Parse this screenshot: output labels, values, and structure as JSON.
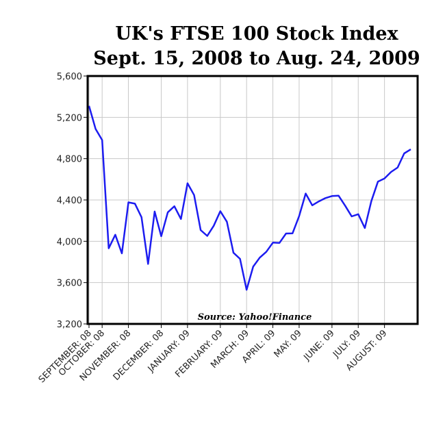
{
  "chart_data": {
    "type": "line",
    "title": "UK's FTSE 100 Stock Index",
    "subtitle": "Sept. 15, 2008 to Aug. 24, 2009",
    "annotation": "Source: Yahoo!Finance",
    "categories": [
      "SEPTEMBER: 08",
      null,
      "OCTOBER: 08",
      null,
      null,
      null,
      "NOVEMBER: 08",
      null,
      null,
      null,
      null,
      "DECEMBER: 08",
      null,
      null,
      null,
      "JANUARY: 09",
      null,
      null,
      null,
      null,
      "FEBRUARY: 09",
      null,
      null,
      null,
      "MARCH: 09",
      null,
      null,
      null,
      "APRIL: 09",
      null,
      null,
      null,
      "MAY: 09",
      null,
      null,
      null,
      null,
      "JUNE: 09",
      null,
      null,
      null,
      "JULY: 09",
      null,
      null,
      null,
      "AUGUST: 09",
      null,
      null,
      null,
      null
    ],
    "series": [
      {
        "name": "FTSE 100",
        "color": "#1c1cf0",
        "values": [
          5311,
          5088,
          4980,
          3932,
          4063,
          3883,
          4377,
          4364,
          4233,
          3781,
          4288,
          4049,
          4280,
          4339,
          4216,
          4562,
          4448,
          4108,
          4052,
          4150,
          4291,
          4189,
          3889,
          3830,
          3530,
          3754,
          3842,
          3898,
          3987,
          3984,
          4075,
          4077,
          4243,
          4462,
          4348,
          4386,
          4418,
          4438,
          4442,
          4345,
          4241,
          4262,
          4128,
          4389,
          4577,
          4608,
          4671,
          4714,
          4851,
          4890
        ]
      }
    ],
    "ylim": [
      3200,
      5600
    ],
    "yticks": [
      {
        "value": 3200,
        "label": "3,200"
      },
      {
        "value": 3600,
        "label": "3,600"
      },
      {
        "value": 4000,
        "label": "4,000"
      },
      {
        "value": 4400,
        "label": "4,400"
      },
      {
        "value": 4800,
        "label": "4,800"
      },
      {
        "value": 5200,
        "label": "5,200"
      },
      {
        "value": 5600,
        "label": "5,600"
      }
    ],
    "grid": true
  }
}
